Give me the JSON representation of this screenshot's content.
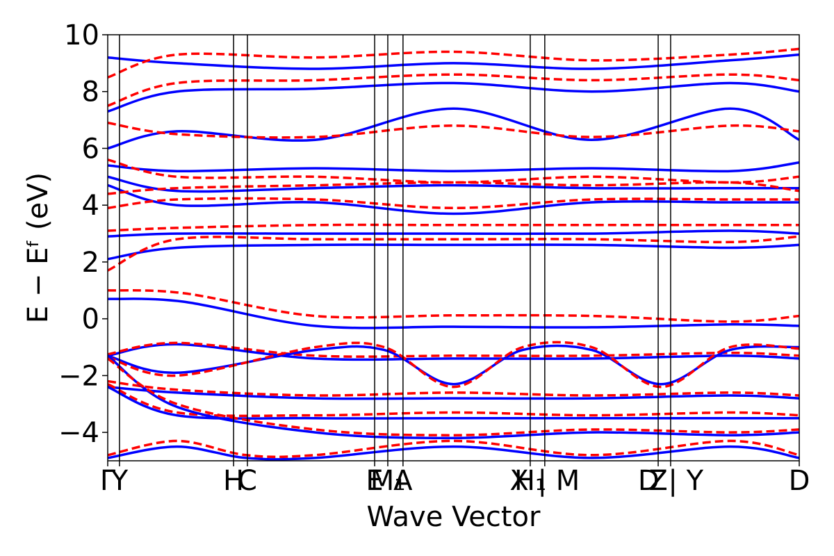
{
  "chart_data": {
    "type": "line",
    "title": "",
    "xlabel": "Wave Vector",
    "ylabel": "E − Eᶠ (eV)",
    "ylim": [
      -5,
      10
    ],
    "xlim": [
      0,
      1
    ],
    "yticks": [
      -4,
      -2,
      0,
      2,
      4,
      6,
      8,
      10
    ],
    "ytick_labels": [
      "−4",
      "−2",
      "0",
      "2",
      "4",
      "6",
      "8",
      "10"
    ],
    "kpoints": [
      {
        "label": "Γ",
        "x": 0.0
      },
      {
        "label": "Y",
        "x": 0.017
      },
      {
        "label": "H",
        "x": 0.182
      },
      {
        "label": "C",
        "x": 0.202
      },
      {
        "label": "E",
        "x": 0.386
      },
      {
        "label": "M₁",
        "x": 0.405
      },
      {
        "label": "A",
        "x": 0.427
      },
      {
        "label": "H₁",
        "x": 0.611
      },
      {
        "label": "X | M",
        "x": 0.632
      },
      {
        "label": "Z",
        "x": 0.796
      },
      {
        "label": "D | Y",
        "x": 0.814
      },
      {
        "label": "D",
        "x": 1.0
      }
    ],
    "vlines": [
      0.017,
      0.182,
      0.202,
      0.386,
      0.405,
      0.427,
      0.611,
      0.632,
      0.796,
      0.814
    ],
    "grid": false,
    "legend": "none",
    "series": [
      {
        "color": "#0000ff",
        "style": "solid",
        "x": [
          0,
          0.11,
          0.3,
          0.5,
          0.7,
          0.9,
          1.0
        ],
        "y": [
          0.7,
          0.6,
          -0.25,
          -0.28,
          -0.3,
          -0.2,
          -0.25
        ]
      },
      {
        "color": "#ff0000",
        "style": "dashed",
        "x": [
          0,
          0.11,
          0.3,
          0.5,
          0.7,
          0.9,
          1.0
        ],
        "y": [
          1.0,
          0.9,
          0.1,
          0.12,
          0.1,
          -0.1,
          0.1
        ]
      },
      {
        "color": "#0000ff",
        "style": "solid",
        "x": [
          0,
          0.1,
          0.3,
          0.5,
          0.7,
          0.9,
          1.0
        ],
        "y": [
          2.1,
          2.5,
          2.6,
          2.6,
          2.6,
          2.5,
          2.6
        ]
      },
      {
        "color": "#ff0000",
        "style": "dashed",
        "x": [
          0,
          0.1,
          0.3,
          0.5,
          0.7,
          0.9,
          1.0
        ],
        "y": [
          1.7,
          2.8,
          2.8,
          2.8,
          2.8,
          2.7,
          2.9
        ]
      },
      {
        "color": "#0000ff",
        "style": "solid",
        "x": [
          0,
          0.1,
          0.3,
          0.5,
          0.7,
          0.9,
          1.0
        ],
        "y": [
          2.9,
          3.0,
          3.0,
          3.0,
          3.0,
          3.1,
          3.0
        ]
      },
      {
        "color": "#ff0000",
        "style": "dashed",
        "x": [
          0,
          0.1,
          0.3,
          0.5,
          0.7,
          0.9,
          1.0
        ],
        "y": [
          3.1,
          3.2,
          3.3,
          3.3,
          3.3,
          3.3,
          3.3
        ]
      },
      {
        "color": "#0000ff",
        "style": "solid",
        "x": [
          0,
          0.1,
          0.3,
          0.5,
          0.7,
          0.9,
          1.0
        ],
        "y": [
          4.7,
          4.0,
          4.1,
          3.7,
          4.1,
          4.1,
          4.1
        ]
      },
      {
        "color": "#ff0000",
        "style": "dashed",
        "x": [
          0,
          0.1,
          0.3,
          0.5,
          0.7,
          0.9,
          1.0
        ],
        "y": [
          3.9,
          4.2,
          4.2,
          3.9,
          4.2,
          4.2,
          4.2
        ]
      },
      {
        "color": "#0000ff",
        "style": "solid",
        "x": [
          0,
          0.1,
          0.3,
          0.5,
          0.7,
          0.9,
          1.0
        ],
        "y": [
          5.0,
          4.5,
          4.6,
          4.7,
          4.6,
          4.6,
          4.6
        ]
      },
      {
        "color": "#ff0000",
        "style": "dashed",
        "x": [
          0,
          0.1,
          0.3,
          0.5,
          0.7,
          0.9,
          1.0
        ],
        "y": [
          4.4,
          4.6,
          4.7,
          4.8,
          4.7,
          4.8,
          4.5
        ]
      },
      {
        "color": "#0000ff",
        "style": "solid",
        "x": [
          0,
          0.1,
          0.3,
          0.5,
          0.7,
          0.9,
          1.0
        ],
        "y": [
          5.4,
          5.2,
          5.3,
          5.2,
          5.3,
          5.2,
          5.5
        ]
      },
      {
        "color": "#ff0000",
        "style": "dashed",
        "x": [
          0,
          0.1,
          0.3,
          0.5,
          0.7,
          0.9,
          1.0
        ],
        "y": [
          5.6,
          5.0,
          5.0,
          4.8,
          5.0,
          4.8,
          5.0
        ]
      },
      {
        "color": "#0000ff",
        "style": "solid",
        "x": [
          0,
          0.1,
          0.3,
          0.5,
          0.7,
          0.9,
          1.0
        ],
        "y": [
          6.0,
          6.6,
          6.3,
          7.4,
          6.3,
          7.4,
          6.3
        ]
      },
      {
        "color": "#ff0000",
        "style": "dashed",
        "x": [
          0,
          0.1,
          0.3,
          0.5,
          0.7,
          0.9,
          1.0
        ],
        "y": [
          6.9,
          6.5,
          6.4,
          6.8,
          6.4,
          6.8,
          6.6
        ]
      },
      {
        "color": "#0000ff",
        "style": "solid",
        "x": [
          0,
          0.1,
          0.3,
          0.5,
          0.7,
          0.9,
          1.0
        ],
        "y": [
          7.3,
          8.0,
          8.1,
          8.3,
          8.0,
          8.3,
          8.0
        ]
      },
      {
        "color": "#ff0000",
        "style": "dashed",
        "x": [
          0,
          0.1,
          0.3,
          0.5,
          0.7,
          0.9,
          1.0
        ],
        "y": [
          7.5,
          8.3,
          8.4,
          8.6,
          8.4,
          8.6,
          8.4
        ]
      },
      {
        "color": "#0000ff",
        "style": "solid",
        "x": [
          0,
          0.1,
          0.3,
          0.5,
          0.7,
          0.9,
          1.0
        ],
        "y": [
          9.2,
          9.0,
          8.8,
          9.0,
          8.8,
          9.1,
          9.3
        ]
      },
      {
        "color": "#ff0000",
        "style": "dashed",
        "x": [
          0,
          0.1,
          0.3,
          0.5,
          0.7,
          0.9,
          1.0
        ],
        "y": [
          8.5,
          9.3,
          9.2,
          9.4,
          9.1,
          9.3,
          9.5
        ]
      },
      {
        "color": "#0000ff",
        "style": "solid",
        "x": [
          0,
          0.1,
          0.3,
          0.5,
          0.7,
          0.9,
          1.0
        ],
        "y": [
          -1.3,
          -0.9,
          -1.4,
          -1.4,
          -1.4,
          -1.3,
          -1.4
        ]
      },
      {
        "color": "#ff0000",
        "style": "dashed",
        "x": [
          0,
          0.1,
          0.3,
          0.5,
          0.7,
          0.9,
          1.0
        ],
        "y": [
          -1.25,
          -0.85,
          -1.3,
          -1.3,
          -1.3,
          -1.2,
          -1.3
        ]
      },
      {
        "color": "#0000ff",
        "style": "solid",
        "x": [
          0,
          0.1,
          0.3,
          0.4,
          0.5,
          0.6,
          0.7,
          0.8,
          0.9,
          1.0
        ],
        "y": [
          -1.3,
          -1.9,
          -1.1,
          -1.1,
          -2.3,
          -1.1,
          -1.1,
          -2.3,
          -1.1,
          -1.0
        ]
      },
      {
        "color": "#ff0000",
        "style": "dashed",
        "x": [
          0,
          0.1,
          0.3,
          0.4,
          0.5,
          0.6,
          0.7,
          0.8,
          0.9,
          1.0
        ],
        "y": [
          -1.35,
          -2.0,
          -1.0,
          -1.0,
          -2.4,
          -1.0,
          -1.0,
          -2.4,
          -1.0,
          -1.05
        ]
      },
      {
        "color": "#0000ff",
        "style": "solid",
        "x": [
          0,
          0.1,
          0.3,
          0.5,
          0.7,
          0.9,
          1.0
        ],
        "y": [
          -2.4,
          -2.6,
          -2.8,
          -2.8,
          -2.8,
          -2.7,
          -2.8
        ]
      },
      {
        "color": "#ff0000",
        "style": "dashed",
        "x": [
          0,
          0.1,
          0.3,
          0.5,
          0.7,
          0.9,
          1.0
        ],
        "y": [
          -2.2,
          -2.5,
          -2.7,
          -2.6,
          -2.7,
          -2.6,
          -2.7
        ]
      },
      {
        "color": "#0000ff",
        "style": "solid",
        "x": [
          0,
          0.1,
          0.3,
          0.5,
          0.7,
          0.9,
          1.0
        ],
        "y": [
          -2.4,
          -3.4,
          -3.5,
          -3.5,
          -3.5,
          -3.5,
          -3.5
        ]
      },
      {
        "color": "#ff0000",
        "style": "dashed",
        "x": [
          0,
          0.1,
          0.3,
          0.5,
          0.7,
          0.9,
          1.0
        ],
        "y": [
          -2.3,
          -3.3,
          -3.4,
          -3.3,
          -3.4,
          -3.3,
          -3.4
        ]
      },
      {
        "color": "#0000ff",
        "style": "solid",
        "x": [
          0,
          0.1,
          0.3,
          0.5,
          0.7,
          0.9,
          1.0
        ],
        "y": [
          -1.3,
          -3.1,
          -4.0,
          -4.2,
          -4.0,
          -4.1,
          -4.0
        ]
      },
      {
        "color": "#ff0000",
        "style": "dashed",
        "x": [
          0,
          0.1,
          0.3,
          0.5,
          0.7,
          0.9,
          1.0
        ],
        "y": [
          -1.4,
          -3.0,
          -3.9,
          -4.1,
          -3.9,
          -4.0,
          -3.9
        ]
      },
      {
        "color": "#0000ff",
        "style": "solid",
        "x": [
          0,
          0.1,
          0.2,
          0.3,
          0.5,
          0.7,
          0.9,
          1.0
        ],
        "y": [
          -4.9,
          -4.5,
          -4.9,
          -4.9,
          -4.5,
          -4.9,
          -4.5,
          -4.9
        ]
      },
      {
        "color": "#ff0000",
        "style": "dashed",
        "x": [
          0,
          0.1,
          0.2,
          0.3,
          0.5,
          0.7,
          0.9,
          1.0
        ],
        "y": [
          -4.8,
          -4.3,
          -4.8,
          -4.8,
          -4.3,
          -4.8,
          -4.3,
          -4.8
        ]
      }
    ]
  }
}
